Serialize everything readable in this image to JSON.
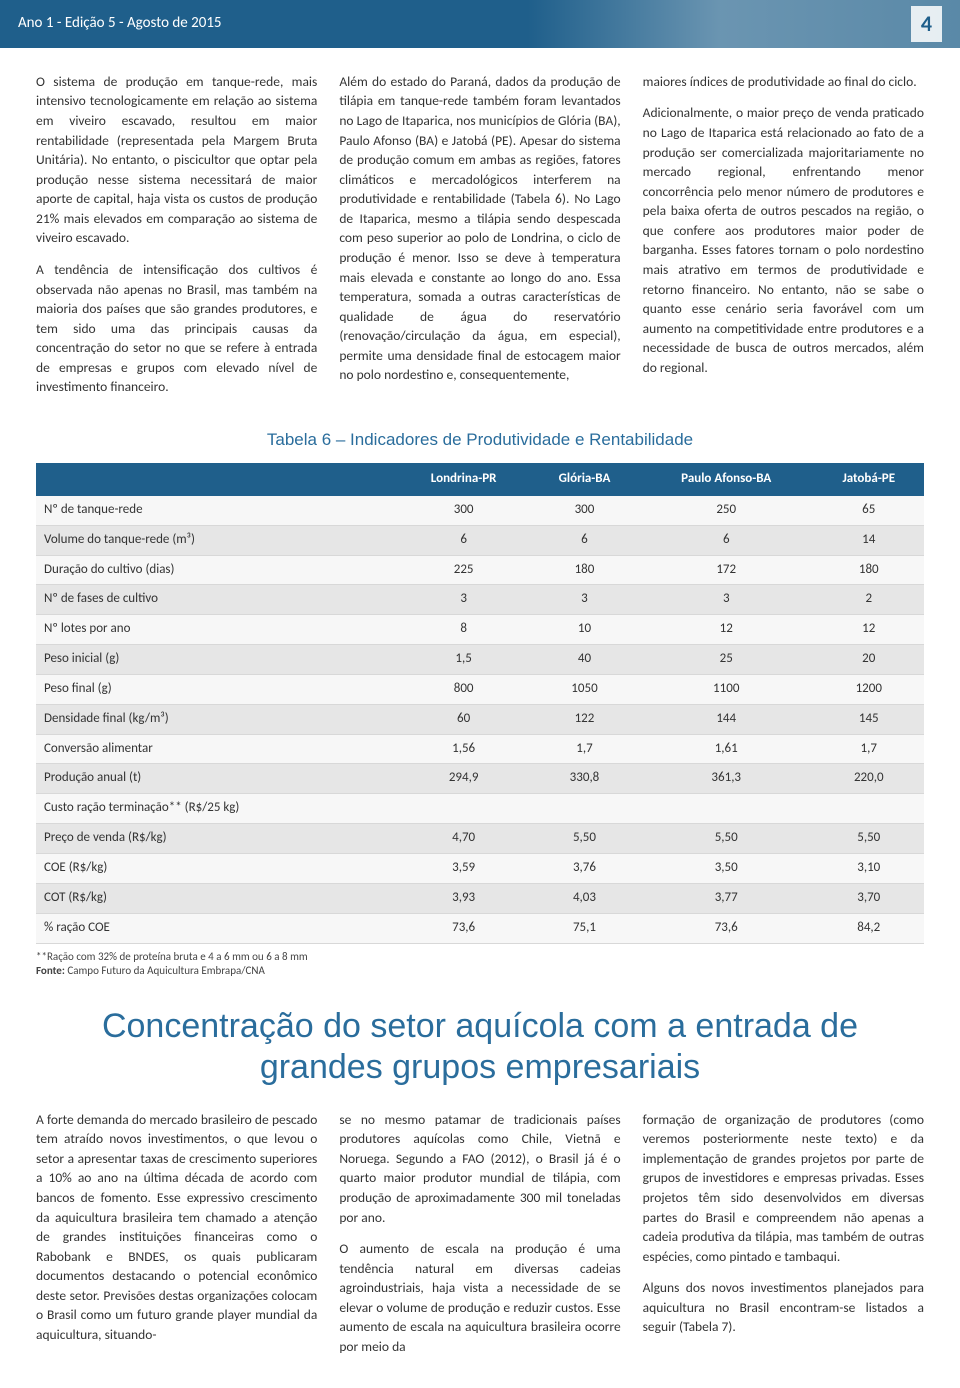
{
  "header": {
    "edition": "Ano 1 - Edição 5 - Agosto de 2015",
    "page": "4"
  },
  "article1": {
    "p1": "O sistema de produção em tanque-rede, mais intensivo tecnologicamente em relação ao sistema em viveiro escavado, resultou em maior rentabilidade (representada pela Margem Bruta Unitária). No entanto, o piscicultor que optar pela produção nesse sistema necessitará de maior aporte de capital, haja vista os custos de produção 21% mais elevados em comparação ao sistema de viveiro escavado.",
    "p2": "A tendência de intensificação dos cultivos é observada não apenas no Brasil, mas também na maioria dos países que são grandes produtores, e tem sido uma das principais causas da concentração do setor no que se refere à entrada de empresas e grupos com elevado nível de investimento financeiro.",
    "p3": "Além do estado do Paraná, dados da produção de tilápia em tanque-rede também foram levantados no Lago de Itaparica, nos municípios de Glória (BA), Paulo Afonso (BA) e Jatobá (PE). Apesar do sistema de produção comum em ambas as regiões, fatores climáticos e mercadológicos interferem na produtividade e rentabilidade (Tabela 6). No Lago de Itaparica, mesmo a tilápia sendo despescada com peso superior ao polo de Londrina, o ciclo de produção é menor. Isso se deve à temperatura mais elevada e constante ao longo do ano. Essa temperatura, somada a outras características de qualidade de água do reservatório (renovação/circulação da água, em especial), permite uma densidade final de estocagem maior no polo nordestino e, consequentemente,",
    "p4": "maiores índices de produtividade ao final do ciclo.",
    "p5": "Adicionalmente, o maior preço de venda praticado no Lago de Itaparica está relacionado ao fato de a produção ser comercializada majoritariamente no mercado regional, enfrentando menor concorrência pelo menor número de produtores e pela baixa oferta de outros pescados na região, o que confere aos produtores maior poder de barganha. Esses fatores tornam o polo nordestino mais atrativo em termos de produtividade e retorno financeiro. No entanto, não se sabe o quanto esse cenário seria favorável com um aumento na competitividade entre produtores e a necessidade de busca de outros mercados, além do regional."
  },
  "table6": {
    "title": "Tabela 6 – Indicadores de Produtividade e Rentabilidade",
    "columns": [
      "",
      "Londrina-PR",
      "Glória-BA",
      "Paulo Afonso-BA",
      "Jatobá-PE"
    ],
    "rows": [
      [
        "Nº de tanque-rede",
        "300",
        "300",
        "250",
        "65"
      ],
      [
        "Volume do tanque-rede (m³)",
        "6",
        "6",
        "6",
        "14"
      ],
      [
        "Duração do cultivo (dias)",
        "225",
        "180",
        "172",
        "180"
      ],
      [
        "Nº de fases de cultivo",
        "3",
        "3",
        "3",
        "2"
      ],
      [
        "Nº lotes por ano",
        "8",
        "10",
        "12",
        "12"
      ],
      [
        "Peso inicial (g)",
        "1,5",
        "40",
        "25",
        "20"
      ],
      [
        "Peso final (g)",
        "800",
        "1050",
        "1100",
        "1200"
      ],
      [
        "Densidade final (kg/m³)",
        "60",
        "122",
        "144",
        "145"
      ],
      [
        "Conversão alimentar",
        "1,56",
        "1,7",
        "1,61",
        "1,7"
      ],
      [
        "Produção anual (t)",
        "294,9",
        "330,8",
        "361,3",
        "220,0"
      ],
      [
        "Custo ração terminação** (R$/25 kg)",
        "",
        "",
        "",
        ""
      ],
      [
        "Preço de venda (R$/kg)",
        "4,70",
        "5,50",
        "5,50",
        "5,50"
      ],
      [
        "COE (R$/kg)",
        "3,59",
        "3,76",
        "3,50",
        "3,10"
      ],
      [
        "COT (R$/kg)",
        "3,93",
        "4,03",
        "3,77",
        "3,70"
      ],
      [
        "% ração COE",
        "73,6",
        "75,1",
        "73,6",
        "84,2"
      ]
    ],
    "footnote1": "**Ração com 32% de proteína bruta e 4 a 6 mm ou 6 a 8 mm",
    "footnote2_label": "Fonte:",
    "footnote2": " Campo Futuro da Aquicultura Embrapa/CNA"
  },
  "article2": {
    "title": "Concentração do setor aquícola com a entrada de grandes grupos empresariais",
    "p1": "A forte demanda do mercado brasileiro de pescado tem atraído novos investimentos, o que levou o setor a apresentar taxas de crescimento superiores a 10% ao ano na última década de acordo com bancos de fomento. Esse expressivo crescimento da aquicultura brasileira tem chamado a atenção de grandes instituições financeiras como o Rabobank e BNDES, os quais publicaram documentos destacando o potencial econômico deste setor. Previsões destas organizações colocam o Brasil como um futuro grande player mundial da aquicultura, situando-",
    "p2": "se no mesmo patamar de tradicionais países produtores aquícolas como Chile, Vietnã e Noruega. Segundo a FAO (2012), o Brasil já é o quarto maior produtor mundial de tilápia, com produção de aproximadamente 300 mil toneladas por ano.",
    "p3": "O aumento de escala na produção é uma tendência natural em diversas cadeias agroindustriais, haja vista a necessidade de se elevar o volume de produção e reduzir custos. Esse aumento de escala na aquicultura brasileira ocorre por meio da",
    "p4": "formação de organização de produtores (como veremos posteriormente neste texto) e da implementação de grandes projetos por parte de grupos de investidores e empresas privadas. Esses projetos têm sido desenvolvidos em diversas partes do Brasil e compreendem não apenas a cadeia produtiva da tilápia, mas também de outras espécies, como pintado e tambaqui.",
    "p5": "Alguns dos novos investimentos planejados para aquicultura no Brasil encontram-se listados a seguir (Tabela 7)."
  },
  "colors": {
    "primary": "#1f5f8b",
    "accent": "#2a6d9c",
    "row_alt": "#e6e6e6",
    "row_base": "#f7f7f7"
  }
}
